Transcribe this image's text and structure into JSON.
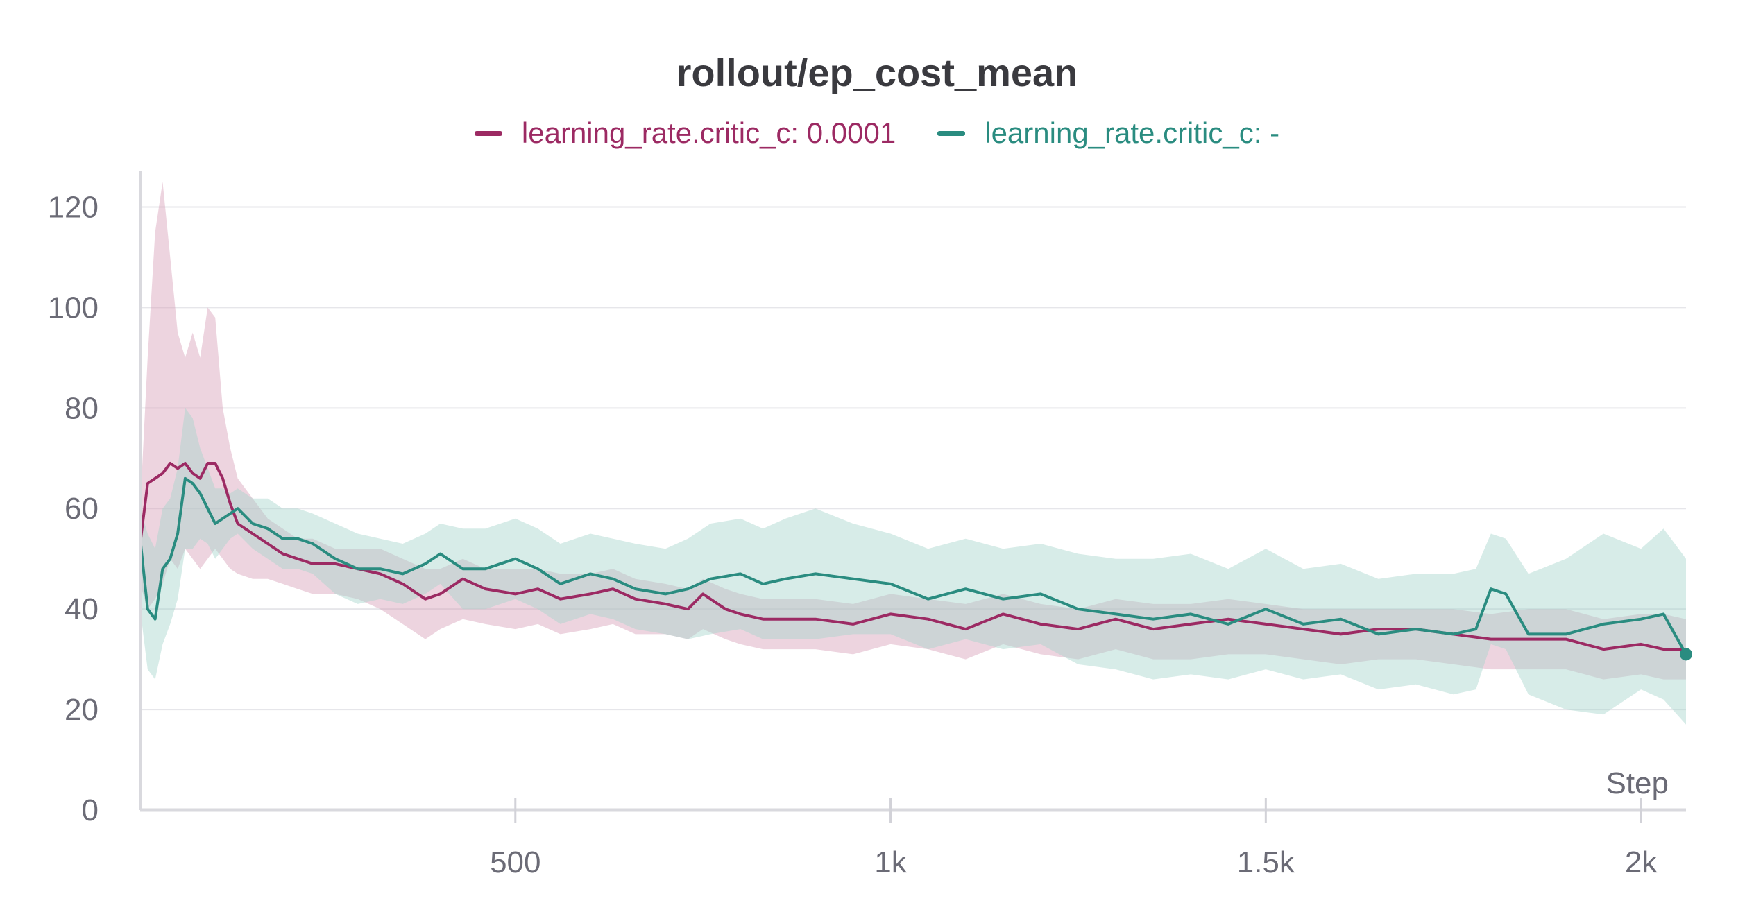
{
  "chart_data": {
    "type": "line",
    "title": "rollout/ep_cost_mean",
    "xlabel": "Step",
    "ylabel": "",
    "xlim": [
      0,
      2060
    ],
    "ylim": [
      0,
      126
    ],
    "xticks": [
      500,
      1000,
      1500,
      2000
    ],
    "xtick_labels": [
      "500",
      "1k",
      "1.5k",
      "2k"
    ],
    "yticks": [
      0,
      20,
      40,
      60,
      80,
      100,
      120
    ],
    "ytick_labels": [
      "0",
      "20",
      "40",
      "60",
      "80",
      "100",
      "120"
    ],
    "grid": true,
    "legend": "top-center",
    "series": [
      {
        "name": "learning_rate.critic_c: 0.0001",
        "color": "#9c2a63",
        "band_color": "#d6a0b8",
        "x": [
          0,
          10,
          20,
          30,
          40,
          50,
          60,
          70,
          80,
          90,
          100,
          110,
          120,
          130,
          150,
          170,
          190,
          210,
          230,
          260,
          290,
          320,
          350,
          380,
          400,
          430,
          460,
          500,
          530,
          560,
          600,
          630,
          660,
          700,
          730,
          750,
          780,
          800,
          830,
          860,
          900,
          950,
          1000,
          1050,
          1100,
          1150,
          1200,
          1250,
          1300,
          1350,
          1400,
          1450,
          1500,
          1550,
          1600,
          1650,
          1700,
          1750,
          1800,
          1850,
          1900,
          1950,
          2000,
          2030,
          2060
        ],
        "values": [
          53,
          65,
          66,
          67,
          69,
          68,
          69,
          67,
          66,
          69,
          69,
          66,
          61,
          57,
          55,
          53,
          51,
          50,
          49,
          49,
          48,
          47,
          45,
          42,
          43,
          46,
          44,
          43,
          44,
          42,
          43,
          44,
          42,
          41,
          40,
          43,
          40,
          39,
          38,
          38,
          38,
          37,
          39,
          38,
          36,
          39,
          37,
          36,
          38,
          36,
          37,
          38,
          37,
          36,
          35,
          36,
          36,
          35,
          34,
          34,
          34,
          32,
          33,
          32,
          32
        ],
        "band_high": [
          60,
          90,
          115,
          125,
          110,
          95,
          90,
          95,
          90,
          100,
          98,
          80,
          72,
          66,
          62,
          58,
          56,
          54,
          54,
          52,
          52,
          52,
          50,
          48,
          48,
          50,
          48,
          48,
          48,
          47,
          47,
          48,
          46,
          45,
          44,
          46,
          44,
          43,
          42,
          42,
          42,
          41,
          43,
          42,
          41,
          43,
          41,
          40,
          42,
          41,
          41,
          42,
          41,
          40,
          40,
          40,
          40,
          40,
          39,
          40,
          40,
          38,
          39,
          39,
          38
        ],
        "band_low": [
          45,
          40,
          42,
          45,
          50,
          48,
          52,
          50,
          48,
          50,
          52,
          50,
          48,
          47,
          46,
          46,
          45,
          44,
          43,
          43,
          42,
          40,
          37,
          34,
          36,
          38,
          37,
          36,
          37,
          35,
          36,
          37,
          35,
          35,
          34,
          36,
          34,
          33,
          32,
          32,
          32,
          31,
          33,
          32,
          30,
          33,
          31,
          30,
          32,
          30,
          30,
          31,
          31,
          30,
          29,
          30,
          30,
          29,
          28,
          28,
          28,
          26,
          27,
          26,
          26
        ]
      },
      {
        "name": "learning_rate.critic_c: -",
        "color": "#2a8c80",
        "band_color": "#a6d4cc",
        "x": [
          0,
          10,
          20,
          30,
          40,
          50,
          60,
          70,
          80,
          90,
          100,
          110,
          120,
          130,
          150,
          170,
          190,
          210,
          230,
          260,
          290,
          320,
          350,
          380,
          400,
          430,
          460,
          500,
          530,
          560,
          600,
          630,
          660,
          700,
          730,
          760,
          800,
          830,
          860,
          900,
          950,
          1000,
          1050,
          1100,
          1150,
          1200,
          1250,
          1300,
          1350,
          1400,
          1450,
          1500,
          1550,
          1600,
          1650,
          1700,
          1750,
          1780,
          1800,
          1820,
          1850,
          1900,
          1950,
          2000,
          2030,
          2060
        ],
        "values": [
          54,
          40,
          38,
          48,
          50,
          55,
          66,
          65,
          63,
          60,
          57,
          58,
          59,
          60,
          57,
          56,
          54,
          54,
          53,
          50,
          48,
          48,
          47,
          49,
          51,
          48,
          48,
          50,
          48,
          45,
          47,
          46,
          44,
          43,
          44,
          46,
          47,
          45,
          46,
          47,
          46,
          45,
          42,
          44,
          42,
          43,
          40,
          39,
          38,
          39,
          37,
          40,
          37,
          38,
          35,
          36,
          35,
          36,
          44,
          43,
          35,
          35,
          37,
          38,
          39,
          31
        ],
        "band_high": [
          60,
          55,
          52,
          60,
          62,
          68,
          80,
          78,
          72,
          68,
          64,
          64,
          63,
          64,
          62,
          62,
          60,
          60,
          59,
          57,
          55,
          54,
          53,
          55,
          57,
          56,
          56,
          58,
          56,
          53,
          55,
          54,
          53,
          52,
          54,
          57,
          58,
          56,
          58,
          60,
          57,
          55,
          52,
          54,
          52,
          53,
          51,
          50,
          50,
          51,
          48,
          52,
          48,
          49,
          46,
          47,
          47,
          48,
          55,
          54,
          47,
          50,
          55,
          52,
          56,
          50
        ],
        "band_low": [
          40,
          28,
          26,
          33,
          37,
          42,
          52,
          52,
          54,
          53,
          50,
          52,
          54,
          55,
          52,
          50,
          48,
          48,
          47,
          43,
          41,
          42,
          41,
          43,
          45,
          40,
          40,
          42,
          40,
          37,
          39,
          38,
          36,
          35,
          34,
          35,
          36,
          34,
          34,
          34,
          35,
          35,
          32,
          34,
          32,
          33,
          29,
          28,
          26,
          27,
          26,
          28,
          26,
          27,
          24,
          25,
          23,
          24,
          33,
          32,
          23,
          20,
          19,
          24,
          22,
          17
        ]
      }
    ]
  }
}
